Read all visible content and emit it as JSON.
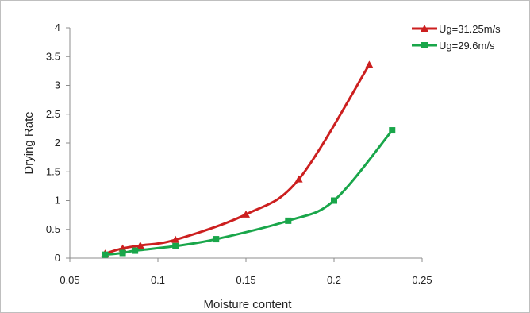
{
  "chart_data": {
    "type": "line",
    "xlabel": "Moisture content",
    "ylabel": "Drying Rate",
    "xlim": [
      0.05,
      0.25
    ],
    "ylim": [
      0,
      4
    ],
    "x_ticks": [
      "0.05",
      "0.1",
      "0.15",
      "0.2",
      "0.25"
    ],
    "y_ticks": [
      "0",
      "0.5",
      "1",
      "1.5",
      "2",
      "2.5",
      "3",
      "3.5",
      "4"
    ],
    "grid": false,
    "legend_position": "top-right",
    "series": [
      {
        "name": "Ug=31.25m/s",
        "color": "#cc1f1f",
        "marker": "triangle",
        "x": [
          0.07,
          0.08,
          0.09,
          0.11,
          0.15,
          0.18,
          0.22
        ],
        "y": [
          0.08,
          0.17,
          0.22,
          0.32,
          0.76,
          1.37,
          3.36
        ]
      },
      {
        "name": "Ug=29.6m/s",
        "color": "#19a64a",
        "marker": "square",
        "x": [
          0.07,
          0.08,
          0.087,
          0.11,
          0.133,
          0.174,
          0.2,
          0.233
        ],
        "y": [
          0.06,
          0.09,
          0.13,
          0.21,
          0.33,
          0.65,
          1.0,
          2.22
        ]
      }
    ]
  }
}
